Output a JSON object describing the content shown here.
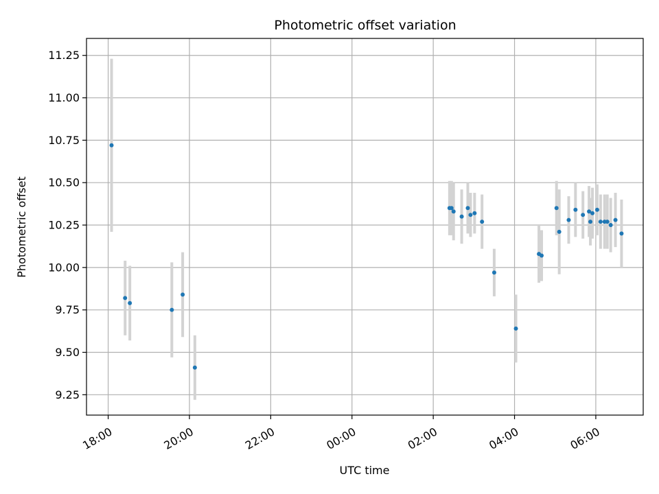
{
  "chart_data": {
    "type": "scatter",
    "title": "Photometric offset variation",
    "xlabel": "UTC time",
    "ylabel": "Photometric offset",
    "x_axis": "time",
    "x_ticks": [
      {
        "t": "18:00",
        "label": "18:00"
      },
      {
        "t": "20:00",
        "label": "20:00"
      },
      {
        "t": "22:00",
        "label": "22:00"
      },
      {
        "t": "24:00",
        "label": "00:00"
      },
      {
        "t": "26:00",
        "label": "02:00"
      },
      {
        "t": "28:00",
        "label": "04:00"
      },
      {
        "t": "30:00",
        "label": "06:00"
      }
    ],
    "xlim": [
      "17:28",
      "31:10"
    ],
    "ylim": [
      9.13,
      11.35
    ],
    "y_ticks": [
      9.25,
      9.5,
      9.75,
      10.0,
      10.25,
      10.5,
      10.75,
      11.0,
      11.25
    ],
    "y_tick_labels": [
      "9.25",
      "9.50",
      "9.75",
      "10.00",
      "10.25",
      "10.50",
      "10.75",
      "11.00",
      "11.25"
    ],
    "grid": true,
    "colors": {
      "points": "#1f77b4",
      "errorbars": "#d3d3d3",
      "grid": "#b0b0b0"
    },
    "points": [
      {
        "t": "18:05",
        "y": 10.72,
        "err": 0.51
      },
      {
        "t": "18:25",
        "y": 9.82,
        "err": 0.22
      },
      {
        "t": "18:32",
        "y": 9.79,
        "err": 0.22
      },
      {
        "t": "19:34",
        "y": 9.75,
        "err": 0.28
      },
      {
        "t": "19:50",
        "y": 9.84,
        "err": 0.25
      },
      {
        "t": "20:08",
        "y": 9.41,
        "err": 0.19
      },
      {
        "t": "26:24",
        "y": 10.35,
        "err": 0.16
      },
      {
        "t": "26:27",
        "y": 10.35,
        "err": 0.16
      },
      {
        "t": "26:30",
        "y": 10.33,
        "err": 0.17
      },
      {
        "t": "26:42",
        "y": 10.3,
        "err": 0.16
      },
      {
        "t": "26:51",
        "y": 10.35,
        "err": 0.15
      },
      {
        "t": "26:55",
        "y": 10.31,
        "err": 0.13
      },
      {
        "t": "27:01",
        "y": 10.32,
        "err": 0.12
      },
      {
        "t": "27:12",
        "y": 10.27,
        "err": 0.16
      },
      {
        "t": "27:30",
        "y": 9.97,
        "err": 0.14
      },
      {
        "t": "28:02",
        "y": 9.64,
        "err": 0.2
      },
      {
        "t": "28:36",
        "y": 10.08,
        "err": 0.17
      },
      {
        "t": "28:40",
        "y": 10.07,
        "err": 0.15
      },
      {
        "t": "29:02",
        "y": 10.35,
        "err": 0.16
      },
      {
        "t": "29:06",
        "y": 10.21,
        "err": 0.25
      },
      {
        "t": "29:20",
        "y": 10.28,
        "err": 0.14
      },
      {
        "t": "29:30",
        "y": 10.34,
        "err": 0.16
      },
      {
        "t": "29:41",
        "y": 10.31,
        "err": 0.14
      },
      {
        "t": "29:50",
        "y": 10.33,
        "err": 0.15
      },
      {
        "t": "29:55",
        "y": 10.32,
        "err": 0.15
      },
      {
        "t": "29:52",
        "y": 10.27,
        "err": 0.14
      },
      {
        "t": "30:02",
        "y": 10.34,
        "err": 0.15
      },
      {
        "t": "30:07",
        "y": 10.27,
        "err": 0.16
      },
      {
        "t": "30:13",
        "y": 10.27,
        "err": 0.16
      },
      {
        "t": "30:17",
        "y": 10.27,
        "err": 0.16
      },
      {
        "t": "30:22",
        "y": 10.25,
        "err": 0.16
      },
      {
        "t": "30:29",
        "y": 10.28,
        "err": 0.16
      },
      {
        "t": "30:38",
        "y": 10.2,
        "err": 0.2
      }
    ]
  }
}
